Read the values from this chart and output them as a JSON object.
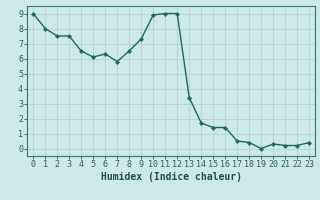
{
  "x": [
    0,
    1,
    2,
    3,
    4,
    5,
    6,
    7,
    8,
    9,
    10,
    11,
    12,
    13,
    14,
    15,
    16,
    17,
    18,
    19,
    20,
    21,
    22,
    23
  ],
  "y": [
    9.0,
    8.0,
    7.5,
    7.5,
    6.5,
    6.1,
    6.3,
    5.8,
    6.5,
    7.3,
    8.9,
    9.0,
    9.0,
    3.4,
    1.7,
    1.4,
    1.4,
    0.5,
    0.4,
    0.0,
    0.3,
    0.2,
    0.2,
    0.4
  ],
  "line_color": "#1a6b5a",
  "marker": "D",
  "marker_size": 2.2,
  "bg_color": "#cce8e8",
  "grid_color": "#b8d4d4",
  "xlabel": "Humidex (Indice chaleur)",
  "xlim": [
    -0.5,
    23.5
  ],
  "ylim": [
    -0.5,
    9.5
  ],
  "xticks": [
    0,
    1,
    2,
    3,
    4,
    5,
    6,
    7,
    8,
    9,
    10,
    11,
    12,
    13,
    14,
    15,
    16,
    17,
    18,
    19,
    20,
    21,
    22,
    23
  ],
  "yticks": [
    0,
    1,
    2,
    3,
    4,
    5,
    6,
    7,
    8,
    9
  ],
  "axis_color": "#2d7a6a",
  "tick_color": "#2d6060",
  "label_color": "#1a5050",
  "xlabel_fontsize": 7,
  "tick_fontsize": 6.0
}
